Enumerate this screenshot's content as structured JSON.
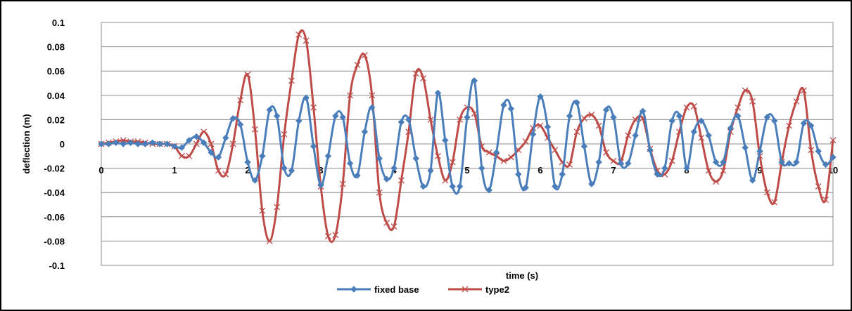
{
  "chart_data": {
    "type": "line",
    "title": "",
    "xlabel": "time (s)",
    "ylabel": "deflection (m)",
    "xlim": [
      0,
      10
    ],
    "ylim": [
      -0.1,
      0.1
    ],
    "x_ticks": [
      "0",
      "1",
      "2",
      "3",
      "4",
      "5",
      "6",
      "7",
      "8",
      "9",
      "10"
    ],
    "y_ticks": [
      "0.1",
      "0.08",
      "0.06",
      "0.04",
      "0.02",
      "0",
      "-0.02",
      "-0.04",
      "-0.06",
      "-0.08",
      "-0.1"
    ],
    "grid": "horizontal",
    "legend_position": "bottom",
    "series": [
      {
        "name": "fixed base",
        "color": "#4a7ebb",
        "marker": "diamond",
        "x": [
          0.0,
          0.1,
          0.2,
          0.3,
          0.4,
          0.5,
          0.6,
          0.7,
          0.8,
          0.9,
          1.0,
          1.1,
          1.2,
          1.3,
          1.4,
          1.5,
          1.6,
          1.7,
          1.8,
          1.9,
          2.0,
          2.1,
          2.2,
          2.3,
          2.4,
          2.5,
          2.6,
          2.7,
          2.8,
          2.9,
          3.0,
          3.1,
          3.2,
          3.3,
          3.4,
          3.5,
          3.6,
          3.7,
          3.8,
          3.9,
          4.0,
          4.1,
          4.2,
          4.3,
          4.4,
          4.5,
          4.6,
          4.7,
          4.8,
          4.9,
          5.0,
          5.1,
          5.2,
          5.3,
          5.4,
          5.5,
          5.6,
          5.7,
          5.8,
          5.9,
          6.0,
          6.1,
          6.2,
          6.3,
          6.4,
          6.5,
          6.6,
          6.7,
          6.8,
          6.9,
          7.0,
          7.1,
          7.2,
          7.3,
          7.4,
          7.5,
          7.6,
          7.7,
          7.8,
          7.9,
          8.0,
          8.1,
          8.2,
          8.3,
          8.4,
          8.5,
          8.6,
          8.7,
          8.8,
          8.9,
          9.0,
          9.1,
          9.2,
          9.3,
          9.4,
          9.5,
          9.6,
          9.7,
          9.8,
          9.9,
          10.0
        ],
        "values": [
          0.0,
          0.0,
          0.001,
          0.0,
          0.001,
          0.0,
          0.0,
          0.001,
          0.0,
          0.0,
          -0.002,
          -0.003,
          0.003,
          0.006,
          0.001,
          -0.007,
          -0.011,
          0.005,
          0.021,
          0.016,
          -0.015,
          -0.03,
          -0.01,
          0.028,
          0.023,
          -0.02,
          -0.022,
          0.019,
          0.038,
          -0.002,
          -0.034,
          -0.01,
          0.023,
          0.022,
          -0.016,
          -0.026,
          0.01,
          0.03,
          -0.012,
          -0.029,
          -0.02,
          0.018,
          0.02,
          -0.012,
          -0.035,
          -0.022,
          0.042,
          0.003,
          -0.035,
          -0.035,
          0.022,
          0.052,
          -0.02,
          -0.038,
          -0.007,
          0.032,
          0.029,
          -0.025,
          -0.036,
          0.008,
          0.039,
          0.014,
          -0.035,
          -0.025,
          0.023,
          0.034,
          -0.002,
          -0.033,
          -0.015,
          0.028,
          0.022,
          -0.016,
          -0.016,
          0.007,
          0.027,
          -0.005,
          -0.025,
          -0.02,
          0.019,
          0.023,
          -0.02,
          0.01,
          0.019,
          0.007,
          -0.015,
          -0.015,
          0.013,
          0.023,
          -0.003,
          -0.03,
          -0.006,
          0.022,
          0.019,
          -0.015,
          -0.016,
          -0.015,
          0.017,
          0.015,
          -0.006,
          -0.017,
          -0.011
        ]
      },
      {
        "name": "type2",
        "color": "#be4b48",
        "marker": "x",
        "x": [
          0.0,
          0.1,
          0.2,
          0.3,
          0.4,
          0.5,
          0.6,
          0.7,
          0.8,
          0.9,
          1.0,
          1.1,
          1.2,
          1.3,
          1.4,
          1.5,
          1.6,
          1.7,
          1.8,
          1.9,
          2.0,
          2.1,
          2.2,
          2.3,
          2.4,
          2.5,
          2.6,
          2.7,
          2.8,
          2.9,
          3.0,
          3.1,
          3.2,
          3.3,
          3.4,
          3.5,
          3.6,
          3.7,
          3.8,
          3.9,
          4.0,
          4.1,
          4.2,
          4.3,
          4.4,
          4.5,
          4.6,
          4.7,
          4.8,
          4.9,
          5.0,
          5.1,
          5.2,
          5.3,
          5.4,
          5.5,
          5.6,
          5.7,
          5.8,
          5.9,
          6.0,
          6.1,
          6.2,
          6.3,
          6.4,
          6.5,
          6.6,
          6.7,
          6.8,
          6.9,
          7.0,
          7.1,
          7.2,
          7.3,
          7.4,
          7.5,
          7.6,
          7.7,
          7.8,
          7.9,
          8.0,
          8.1,
          8.2,
          8.3,
          8.4,
          8.5,
          8.6,
          8.7,
          8.8,
          8.9,
          9.0,
          9.1,
          9.2,
          9.3,
          9.4,
          9.5,
          9.6,
          9.7,
          9.8,
          9.9,
          10.0
        ],
        "values": [
          0.0,
          0.001,
          0.002,
          0.003,
          0.002,
          0.002,
          0.001,
          0.0,
          0.0,
          0.0,
          -0.002,
          -0.01,
          -0.01,
          0.0,
          0.01,
          0.0,
          -0.022,
          -0.025,
          0.0,
          0.036,
          0.057,
          0.012,
          -0.055,
          -0.08,
          -0.052,
          0.008,
          0.052,
          0.09,
          0.085,
          0.03,
          -0.035,
          -0.076,
          -0.075,
          -0.033,
          0.04,
          0.065,
          0.073,
          0.04,
          -0.04,
          -0.065,
          -0.068,
          -0.03,
          0.01,
          0.058,
          0.054,
          0.02,
          -0.01,
          -0.03,
          -0.015,
          0.02,
          0.03,
          0.025,
          -0.002,
          -0.007,
          -0.01,
          -0.014,
          -0.011,
          -0.005,
          0.002,
          0.013,
          0.015,
          0.005,
          -0.005,
          -0.015,
          -0.017,
          0.01,
          0.021,
          0.024,
          0.015,
          -0.007,
          -0.014,
          -0.015,
          0.007,
          0.02,
          0.021,
          -0.004,
          -0.022,
          -0.025,
          -0.014,
          0.01,
          0.03,
          0.031,
          0.005,
          -0.022,
          -0.031,
          -0.022,
          0.01,
          0.03,
          0.044,
          0.035,
          -0.01,
          -0.04,
          -0.048,
          -0.015,
          0.015,
          0.035,
          0.044,
          -0.005,
          -0.035,
          -0.046,
          0.003
        ]
      }
    ]
  }
}
